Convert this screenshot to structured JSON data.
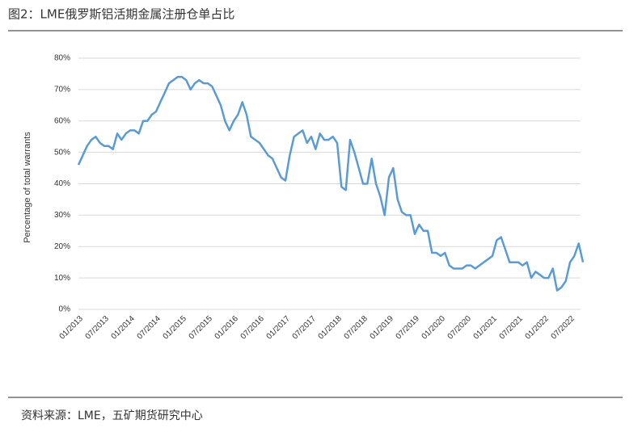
{
  "chart_data": {
    "type": "line",
    "title": "图2：LME俄罗斯铝活期金属注册仓单占比",
    "y_label": "Percentage of total warrants",
    "source": "资料来源：LME，五矿期货研究中心",
    "color": "#5b9bd5",
    "grid": true,
    "x": [
      "01/2013",
      "02/2013",
      "03/2013",
      "04/2013",
      "05/2013",
      "06/2013",
      "07/2013",
      "08/2013",
      "09/2013",
      "10/2013",
      "11/2013",
      "12/2013",
      "01/2014",
      "02/2014",
      "03/2014",
      "04/2014",
      "05/2014",
      "06/2014",
      "07/2014",
      "08/2014",
      "09/2014",
      "10/2014",
      "11/2014",
      "12/2014",
      "01/2015",
      "02/2015",
      "03/2015",
      "04/2015",
      "05/2015",
      "06/2015",
      "07/2015",
      "08/2015",
      "09/2015",
      "10/2015",
      "11/2015",
      "12/2015",
      "01/2016",
      "02/2016",
      "03/2016",
      "04/2016",
      "05/2016",
      "06/2016",
      "07/2016",
      "08/2016",
      "09/2016",
      "10/2016",
      "11/2016",
      "12/2016",
      "01/2017",
      "02/2017",
      "03/2017",
      "04/2017",
      "05/2017",
      "06/2017",
      "07/2017",
      "08/2017",
      "09/2017",
      "10/2017",
      "11/2017",
      "12/2017",
      "01/2018",
      "02/2018",
      "03/2018",
      "04/2018",
      "05/2018",
      "06/2018",
      "07/2018",
      "08/2018",
      "09/2018",
      "10/2018",
      "11/2018",
      "12/2018",
      "01/2019",
      "02/2019",
      "03/2019",
      "04/2019",
      "05/2019",
      "06/2019",
      "07/2019",
      "08/2019",
      "09/2019",
      "10/2019",
      "11/2019",
      "12/2019",
      "01/2020",
      "02/2020",
      "03/2020",
      "04/2020",
      "05/2020",
      "06/2020",
      "07/2020",
      "08/2020",
      "09/2020",
      "10/2020",
      "11/2020",
      "12/2020",
      "01/2021",
      "02/2021",
      "03/2021",
      "04/2021",
      "05/2021",
      "06/2021",
      "07/2021",
      "08/2021",
      "09/2021",
      "10/2021",
      "11/2021",
      "12/2021",
      "01/2022",
      "02/2022",
      "03/2022",
      "04/2022",
      "05/2022",
      "06/2022",
      "07/2022",
      "08/2022",
      "09/2022",
      "10/2022"
    ],
    "values": [
      46,
      49,
      52,
      54,
      55,
      53,
      52,
      52,
      51,
      56,
      54,
      56,
      57,
      57,
      56,
      60,
      60,
      62,
      63,
      66,
      69,
      72,
      73,
      74,
      74,
      73,
      70,
      72,
      73,
      72,
      72,
      71,
      68,
      65,
      60,
      57,
      60,
      62,
      66,
      62,
      55,
      54,
      53,
      51,
      49,
      48,
      45,
      42,
      41,
      49,
      55,
      56,
      57,
      53,
      55,
      51,
      56,
      54,
      54,
      55,
      53,
      39,
      38,
      54,
      50,
      45,
      40,
      40,
      48,
      40,
      36,
      30,
      42,
      45,
      35,
      31,
      30,
      30,
      24,
      27,
      25,
      25,
      18,
      18,
      17,
      18,
      14,
      13,
      13,
      13,
      14,
      14,
      13,
      14,
      15,
      16,
      17,
      22,
      23,
      19,
      15,
      15,
      15,
      14,
      15,
      10,
      12,
      11,
      10,
      10,
      13,
      6,
      7,
      9,
      15,
      17,
      21,
      15
    ],
    "ylim": [
      0,
      80
    ],
    "yticks": [
      {
        "value": 0,
        "label": "0%"
      },
      {
        "value": 10,
        "label": "10%"
      },
      {
        "value": 20,
        "label": "20%"
      },
      {
        "value": 30,
        "label": "30%"
      },
      {
        "value": 40,
        "label": "40%"
      },
      {
        "value": 50,
        "label": "50%"
      },
      {
        "value": 60,
        "label": "60%"
      },
      {
        "value": 70,
        "label": "70%"
      },
      {
        "value": 80,
        "label": "80%"
      }
    ],
    "xticks": [
      "01/2013",
      "07/2013",
      "01/2014",
      "07/2014",
      "01/2015",
      "07/2015",
      "01/2016",
      "07/2016",
      "01/2017",
      "07/2017",
      "01/2018",
      "07/2018",
      "01/2019",
      "07/2019",
      "01/2020",
      "07/2020",
      "01/2021",
      "07/2021",
      "01/2022",
      "07/2022"
    ]
  }
}
